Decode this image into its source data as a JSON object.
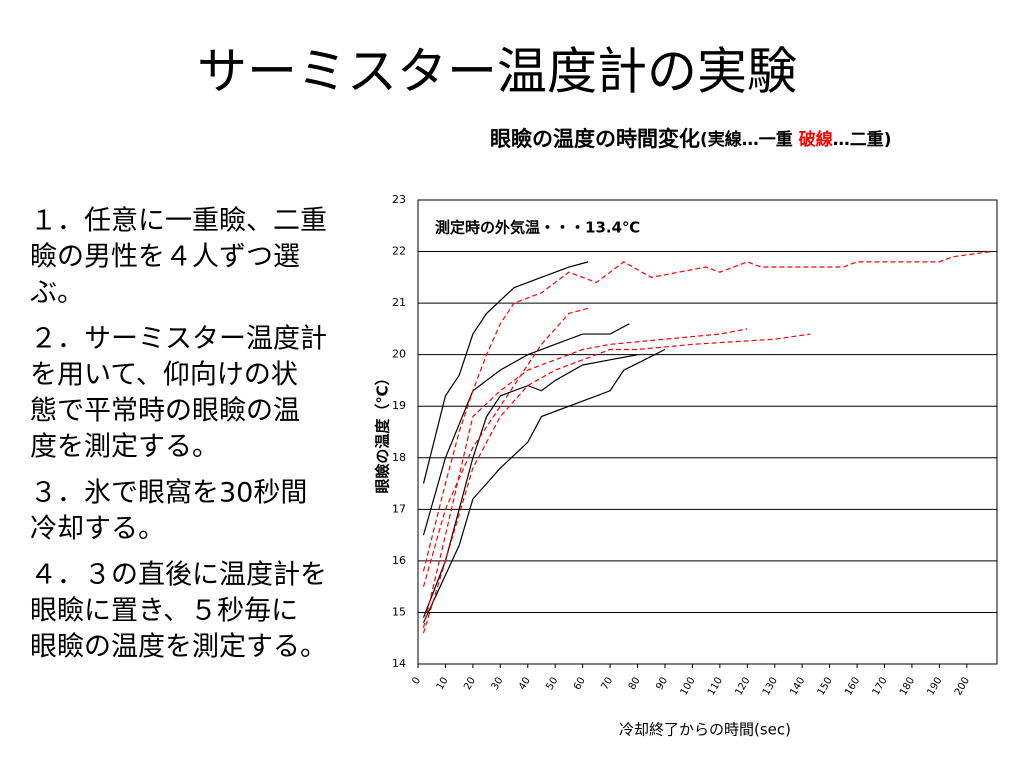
{
  "slide_title": "サーミスター温度計の実験",
  "steps": [
    [
      "１．任意に一重瞼、二重",
      "瞼の男性を４人ずつ選",
      "ぶ。"
    ],
    [
      "２．サーミスター温度計",
      "を用いて、仰向けの状",
      "態で平常時の眼瞼の温",
      "度を測定する。"
    ],
    [
      "３．氷で眼窩を30秒間",
      "冷却する。"
    ],
    [
      "４．３の直後に温度計を",
      "眼瞼に置き、５秒毎に",
      "眼瞼の温度を測定する。"
    ]
  ],
  "chart_data": {
    "type": "line",
    "title": "眼瞼の温度の時間変化",
    "subtitle_parts": [
      "(実線…一重 ",
      "破線",
      "…二重)"
    ],
    "annotation": "測定時の外気温・・・13.4℃",
    "xlabel": "冷却終了からの時間(sec)",
    "ylabel": "眼瞼の温度（℃）",
    "xlim": [
      0,
      211
    ],
    "ylim": [
      14,
      23
    ],
    "xticks": [
      0,
      10,
      20,
      30,
      40,
      50,
      60,
      70,
      80,
      90,
      100,
      110,
      120,
      130,
      140,
      150,
      160,
      170,
      180,
      190,
      200
    ],
    "yticks": [
      14,
      15,
      16,
      17,
      18,
      19,
      20,
      21,
      22,
      23
    ],
    "grid": true,
    "series": [
      {
        "color": "#000000",
        "dash": false,
        "x": [
          2,
          10,
          15,
          20,
          25,
          35,
          45,
          55,
          62
        ],
        "values": [
          17.5,
          19.2,
          19.6,
          20.4,
          20.8,
          21.3,
          21.5,
          21.7,
          21.8
        ]
      },
      {
        "color": "#000000",
        "dash": false,
        "x": [
          2,
          10,
          20,
          30,
          40,
          50,
          60,
          70,
          77
        ],
        "values": [
          16.5,
          18.0,
          19.3,
          19.7,
          20.0,
          20.2,
          20.4,
          20.4,
          20.6
        ]
      },
      {
        "color": "#000000",
        "dash": false,
        "x": [
          2,
          10,
          20,
          25,
          30,
          40,
          45,
          50,
          60,
          70,
          80
        ],
        "values": [
          14.9,
          16.0,
          18.0,
          18.8,
          19.2,
          19.4,
          19.3,
          19.5,
          19.8,
          19.9,
          20.0
        ]
      },
      {
        "color": "#000000",
        "dash": false,
        "x": [
          2,
          15,
          20,
          30,
          40,
          45,
          60,
          70,
          75,
          90
        ],
        "values": [
          14.8,
          16.3,
          17.2,
          17.8,
          18.3,
          18.8,
          19.1,
          19.3,
          19.7,
          20.1
        ]
      },
      {
        "color": "#ff0000",
        "dash": true,
        "x": [
          2,
          10,
          15,
          20,
          25,
          30,
          35,
          45,
          55,
          60,
          65,
          75,
          85,
          95,
          105,
          110,
          120,
          125,
          155,
          160,
          190,
          195,
          209
        ],
        "values": [
          15.8,
          17.5,
          18.5,
          19.3,
          20.0,
          20.6,
          21.0,
          21.2,
          21.6,
          21.5,
          21.4,
          21.8,
          21.5,
          21.6,
          21.7,
          21.6,
          21.8,
          21.7,
          21.7,
          21.8,
          21.8,
          21.9,
          22.0
        ]
      },
      {
        "color": "#ff0000",
        "dash": true,
        "x": [
          2,
          10,
          20,
          30,
          40,
          45,
          50,
          55,
          62
        ],
        "values": [
          15.5,
          17.0,
          18.2,
          19.0,
          19.8,
          20.2,
          20.5,
          20.8,
          20.9
        ]
      },
      {
        "color": "#ff0000",
        "dash": true,
        "x": [
          2,
          10,
          20,
          30,
          40,
          50,
          60,
          70,
          90,
          110,
          120
        ],
        "values": [
          14.7,
          16.5,
          18.8,
          19.3,
          19.7,
          19.9,
          20.1,
          20.2,
          20.3,
          20.4,
          20.5
        ]
      },
      {
        "color": "#ff0000",
        "dash": true,
        "x": [
          2,
          10,
          20,
          30,
          40,
          50,
          60,
          70,
          80,
          100,
          130,
          143
        ],
        "values": [
          14.6,
          16.0,
          17.8,
          18.8,
          19.4,
          19.7,
          19.9,
          20.1,
          20.1,
          20.2,
          20.3,
          20.4
        ]
      }
    ]
  }
}
